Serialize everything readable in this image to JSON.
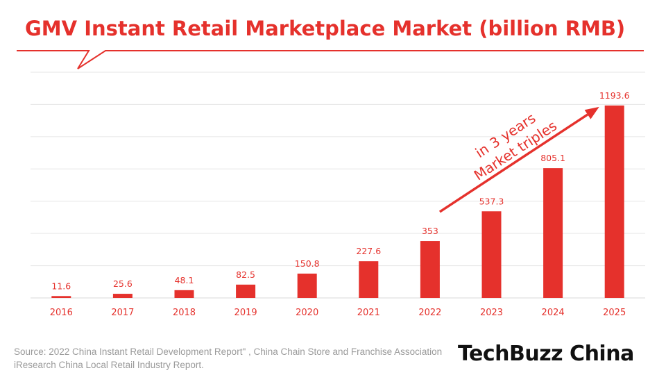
{
  "chart_data": {
    "type": "bar",
    "title": "GMV Instant Retail Marketplace Market (billion RMB)",
    "categories": [
      "2016",
      "2017",
      "2018",
      "2019",
      "2020",
      "2021",
      "2022",
      "2023",
      "2024",
      "2025"
    ],
    "values": [
      11.6,
      25.6,
      48.1,
      82.5,
      150.8,
      227.6,
      353,
      537.3,
      805.1,
      1193.6
    ],
    "value_labels": [
      "11.6",
      "25.6",
      "48.1",
      "82.5",
      "150.8",
      "227.6",
      "353",
      "537.3",
      "805.1",
      "1193.6"
    ],
    "xlabel": "",
    "ylabel": "",
    "ylim": [
      0,
      1400
    ],
    "grid": true,
    "annotation": {
      "lines": [
        "Market triples",
        "in 3 years"
      ],
      "arrow_from_category": "2022",
      "arrow_to_category": "2025"
    },
    "colors": {
      "bar": "#e5312c",
      "accent": "#e5312c",
      "grid": "#e6e6e6",
      "tick_label": "#e5312c"
    }
  },
  "footer": {
    "source": "Source: 2022 China Instant Retail Development Report\" , China Chain Store and Franchise Association iResearch China Local Retail Industry Report.",
    "brand": "TechBuzz China"
  }
}
